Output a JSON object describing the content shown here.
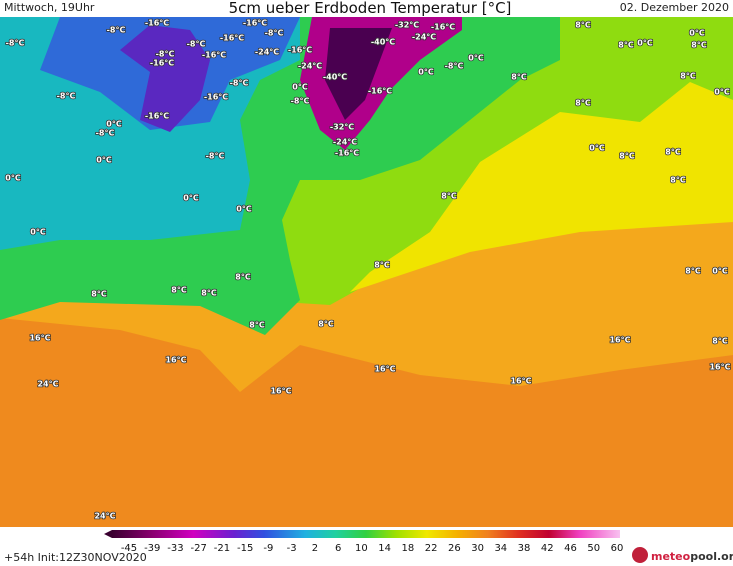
{
  "header": {
    "time": "Mittwoch, 19Uhr",
    "title": "5cm ueber Erdboden Temperatur [°C]",
    "date": "02. Dezember 2020"
  },
  "map": {
    "labels": [
      "-8°C",
      "-8°C",
      "-16°C",
      "-16°C",
      "-8°C",
      "-32°C",
      "-16°C",
      "8°C",
      "0°C",
      "-16°C",
      "-24°C",
      "-16°C",
      "-40°C",
      "-24°C",
      "-8°C",
      "-8°C",
      "-16°C",
      "-16°C",
      "-24°C",
      "0°C",
      "-40°C",
      "0°C",
      "-8°C",
      "0°C",
      "8°C",
      "-8°C",
      "-8°C",
      "-16°C",
      "-16°C",
      "-8°C",
      "-16°C",
      "0°C",
      "-8°C",
      "8°C",
      "0°C",
      "-32°C",
      "-24°C",
      "-16°C",
      "-8°C",
      "0°C",
      "0°C",
      "0°C",
      "8°C",
      "0°C",
      "0°C",
      "8°C",
      "8°C",
      "8°C",
      "0°C",
      "8°C",
      "8°C",
      "8°C",
      "8°C",
      "8°C",
      "16°C",
      "16°C",
      "8°C",
      "16°C",
      "16°C",
      "16°C",
      "24°C",
      "16°C",
      "16°C",
      "24°C",
      "8°C",
      "0°C",
      "8°C",
      "8°C",
      "8°C",
      "8°C",
      "8°C",
      "0°C"
    ]
  },
  "legend": {
    "ticks": [
      -45,
      -39,
      -33,
      -27,
      -21,
      -15,
      -9,
      -3,
      2,
      6,
      10,
      14,
      18,
      22,
      26,
      30,
      34,
      38,
      42,
      46,
      50,
      60
    ]
  },
  "footer": {
    "run": "+54h Init:12Z30NOV2020",
    "logo": {
      "brand": "meteo",
      "suffix": "pool.org"
    }
  }
}
